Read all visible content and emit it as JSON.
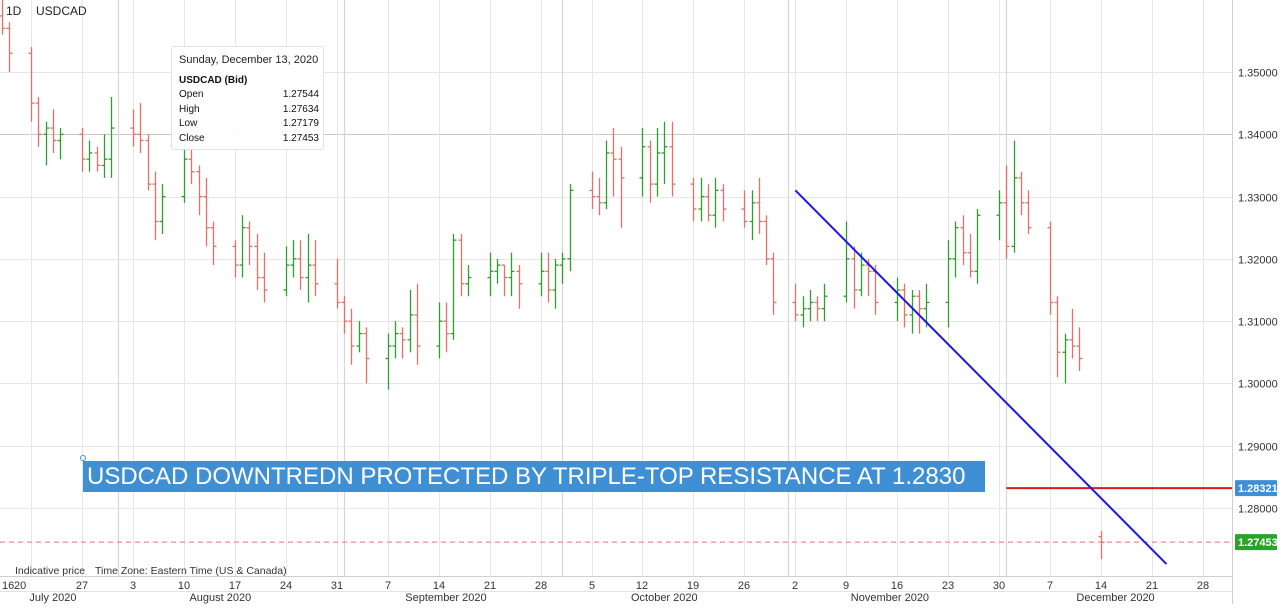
{
  "header": {
    "interval": "1D",
    "symbol": "USDCAD"
  },
  "tooltip": {
    "date": "Sunday, December 13, 2020",
    "symbol": "USDCAD (Bid)",
    "rows": [
      {
        "label": "Open",
        "value": "1.27544"
      },
      {
        "label": "High",
        "value": "1.27634"
      },
      {
        "label": "Low",
        "value": "1.27179"
      },
      {
        "label": "Close",
        "value": "1.27453"
      }
    ]
  },
  "annotation": {
    "text": "USDCAD DOWNTREDN PROTECTED BY TRIPLE-TOP RESISTANCE AT 1.2830"
  },
  "footer": {
    "indicative": "Indicative price",
    "timezone": "Time Zone: Eastern Time (US & Canada)"
  },
  "colors": {
    "up": "#2ca02c",
    "down": "#e8706a",
    "trendline": "#1a1adf",
    "resistance": "#e01818",
    "last_price_label": "#29a329",
    "resistance_label": "#3e8fd3",
    "annotation_bg": "#3e8fd3"
  },
  "chart_data": {
    "type": "ohlc",
    "title": "",
    "xlabel": "",
    "ylabel": "",
    "ylim": [
      1.262,
      1.363
    ],
    "xlim": [
      "2020-07-16",
      "2021-01-01"
    ],
    "grid": true,
    "y_ticks": [
      "1.35000",
      "1.34000",
      "1.33000",
      "1.32000",
      "1.31000",
      "1.30000",
      "1.29000",
      "1.28000"
    ],
    "x_day_ticks": [
      {
        "date": "2020-07-16",
        "label": "16"
      },
      {
        "date": "2020-07-20",
        "label": "20"
      },
      {
        "date": "2020-07-27",
        "label": "27"
      },
      {
        "date": "2020-08-03",
        "label": "3"
      },
      {
        "date": "2020-08-10",
        "label": "10"
      },
      {
        "date": "2020-08-17",
        "label": "17"
      },
      {
        "date": "2020-08-24",
        "label": "24"
      },
      {
        "date": "2020-08-31",
        "label": "31"
      },
      {
        "date": "2020-09-07",
        "label": "7"
      },
      {
        "date": "2020-09-14",
        "label": "14"
      },
      {
        "date": "2020-09-21",
        "label": "21"
      },
      {
        "date": "2020-09-28",
        "label": "28"
      },
      {
        "date": "2020-10-05",
        "label": "5"
      },
      {
        "date": "2020-10-12",
        "label": "12"
      },
      {
        "date": "2020-10-19",
        "label": "19"
      },
      {
        "date": "2020-10-26",
        "label": "26"
      },
      {
        "date": "2020-11-02",
        "label": "2"
      },
      {
        "date": "2020-11-09",
        "label": "9"
      },
      {
        "date": "2020-11-16",
        "label": "16"
      },
      {
        "date": "2020-11-23",
        "label": "23"
      },
      {
        "date": "2020-11-30",
        "label": "30"
      },
      {
        "date": "2020-12-07",
        "label": "7"
      },
      {
        "date": "2020-12-14",
        "label": "14"
      },
      {
        "date": "2020-12-21",
        "label": "21"
      },
      {
        "date": "2020-12-28",
        "label": "28"
      }
    ],
    "x_month_labels": [
      {
        "date": "2020-07-23",
        "label": "July 2020"
      },
      {
        "date": "2020-08-15",
        "label": "August 2020"
      },
      {
        "date": "2020-09-15",
        "label": "September 2020"
      },
      {
        "date": "2020-10-15",
        "label": "October 2020"
      },
      {
        "date": "2020-11-15",
        "label": "November 2020"
      },
      {
        "date": "2020-12-16",
        "label": "December 2020"
      }
    ],
    "month_dividers": [
      "2020-08-01",
      "2020-09-01",
      "2020-10-01",
      "2020-11-01",
      "2020-12-01"
    ],
    "bars": [
      {
        "date": "2020-07-16",
        "open": 1.359,
        "high": 1.362,
        "low": 1.356,
        "close": 1.357
      },
      {
        "date": "2020-07-17",
        "open": 1.357,
        "high": 1.358,
        "low": 1.35,
        "close": 1.353
      },
      {
        "date": "2020-07-20",
        "open": 1.353,
        "high": 1.354,
        "low": 1.342,
        "close": 1.345
      },
      {
        "date": "2020-07-21",
        "open": 1.345,
        "high": 1.346,
        "low": 1.338,
        "close": 1.34
      },
      {
        "date": "2020-07-22",
        "open": 1.34,
        "high": 1.342,
        "low": 1.335,
        "close": 1.341
      },
      {
        "date": "2020-07-23",
        "open": 1.341,
        "high": 1.344,
        "low": 1.337,
        "close": 1.339
      },
      {
        "date": "2020-07-24",
        "open": 1.339,
        "high": 1.341,
        "low": 1.336,
        "close": 1.34
      },
      {
        "date": "2020-07-27",
        "open": 1.34,
        "high": 1.341,
        "low": 1.334,
        "close": 1.336
      },
      {
        "date": "2020-07-28",
        "open": 1.336,
        "high": 1.339,
        "low": 1.334,
        "close": 1.337
      },
      {
        "date": "2020-07-29",
        "open": 1.337,
        "high": 1.338,
        "low": 1.334,
        "close": 1.335
      },
      {
        "date": "2020-07-30",
        "open": 1.335,
        "high": 1.34,
        "low": 1.333,
        "close": 1.336
      },
      {
        "date": "2020-07-31",
        "open": 1.336,
        "high": 1.346,
        "low": 1.333,
        "close": 1.341
      },
      {
        "date": "2020-08-03",
        "open": 1.341,
        "high": 1.344,
        "low": 1.338,
        "close": 1.34
      },
      {
        "date": "2020-08-04",
        "open": 1.34,
        "high": 1.345,
        "low": 1.337,
        "close": 1.339
      },
      {
        "date": "2020-08-05",
        "open": 1.339,
        "high": 1.34,
        "low": 1.331,
        "close": 1.332
      },
      {
        "date": "2020-08-06",
        "open": 1.332,
        "high": 1.334,
        "low": 1.323,
        "close": 1.326
      },
      {
        "date": "2020-08-07",
        "open": 1.326,
        "high": 1.332,
        "low": 1.324,
        "close": 1.33
      },
      {
        "date": "2020-08-10",
        "open": 1.33,
        "high": 1.339,
        "low": 1.329,
        "close": 1.336
      },
      {
        "date": "2020-08-11",
        "open": 1.336,
        "high": 1.338,
        "low": 1.332,
        "close": 1.334
      },
      {
        "date": "2020-08-12",
        "open": 1.334,
        "high": 1.335,
        "low": 1.327,
        "close": 1.33
      },
      {
        "date": "2020-08-13",
        "open": 1.33,
        "high": 1.333,
        "low": 1.322,
        "close": 1.325
      },
      {
        "date": "2020-08-14",
        "open": 1.325,
        "high": 1.326,
        "low": 1.319,
        "close": 1.322
      },
      {
        "date": "2020-08-17",
        "open": 1.322,
        "high": 1.323,
        "low": 1.317,
        "close": 1.319
      },
      {
        "date": "2020-08-18",
        "open": 1.319,
        "high": 1.327,
        "low": 1.317,
        "close": 1.325
      },
      {
        "date": "2020-08-19",
        "open": 1.325,
        "high": 1.326,
        "low": 1.319,
        "close": 1.322
      },
      {
        "date": "2020-08-20",
        "open": 1.322,
        "high": 1.324,
        "low": 1.315,
        "close": 1.317
      },
      {
        "date": "2020-08-21",
        "open": 1.317,
        "high": 1.321,
        "low": 1.313,
        "close": 1.315
      },
      {
        "date": "2020-08-24",
        "open": 1.315,
        "high": 1.322,
        "low": 1.314,
        "close": 1.319
      },
      {
        "date": "2020-08-25",
        "open": 1.319,
        "high": 1.323,
        "low": 1.317,
        "close": 1.32
      },
      {
        "date": "2020-08-26",
        "open": 1.32,
        "high": 1.323,
        "low": 1.315,
        "close": 1.317
      },
      {
        "date": "2020-08-27",
        "open": 1.317,
        "high": 1.324,
        "low": 1.313,
        "close": 1.319
      },
      {
        "date": "2020-08-28",
        "open": 1.319,
        "high": 1.323,
        "low": 1.314,
        "close": 1.316
      },
      {
        "date": "2020-08-31",
        "open": 1.316,
        "high": 1.32,
        "low": 1.312,
        "close": 1.313
      },
      {
        "date": "2020-09-01",
        "open": 1.313,
        "high": 1.314,
        "low": 1.308,
        "close": 1.31
      },
      {
        "date": "2020-09-02",
        "open": 1.31,
        "high": 1.312,
        "low": 1.303,
        "close": 1.306
      },
      {
        "date": "2020-09-03",
        "open": 1.306,
        "high": 1.31,
        "low": 1.305,
        "close": 1.308
      },
      {
        "date": "2020-09-04",
        "open": 1.308,
        "high": 1.309,
        "low": 1.3,
        "close": 1.304
      },
      {
        "date": "2020-09-07",
        "open": 1.304,
        "high": 1.308,
        "low": 1.299,
        "close": 1.306
      },
      {
        "date": "2020-09-08",
        "open": 1.306,
        "high": 1.31,
        "low": 1.304,
        "close": 1.308
      },
      {
        "date": "2020-09-09",
        "open": 1.308,
        "high": 1.309,
        "low": 1.304,
        "close": 1.307
      },
      {
        "date": "2020-09-10",
        "open": 1.307,
        "high": 1.315,
        "low": 1.305,
        "close": 1.311
      },
      {
        "date": "2020-09-11",
        "open": 1.311,
        "high": 1.316,
        "low": 1.303,
        "close": 1.306
      },
      {
        "date": "2020-09-14",
        "open": 1.306,
        "high": 1.313,
        "low": 1.304,
        "close": 1.31
      },
      {
        "date": "2020-09-15",
        "open": 1.31,
        "high": 1.313,
        "low": 1.305,
        "close": 1.308
      },
      {
        "date": "2020-09-16",
        "open": 1.308,
        "high": 1.324,
        "low": 1.307,
        "close": 1.323
      },
      {
        "date": "2020-09-17",
        "open": 1.323,
        "high": 1.324,
        "low": 1.314,
        "close": 1.316
      },
      {
        "date": "2020-09-18",
        "open": 1.316,
        "high": 1.319,
        "low": 1.314,
        "close": 1.317
      },
      {
        "date": "2020-09-21",
        "open": 1.317,
        "high": 1.321,
        "low": 1.314,
        "close": 1.318
      },
      {
        "date": "2020-09-22",
        "open": 1.318,
        "high": 1.32,
        "low": 1.316,
        "close": 1.319
      },
      {
        "date": "2020-09-23",
        "open": 1.319,
        "high": 1.319,
        "low": 1.314,
        "close": 1.317
      },
      {
        "date": "2020-09-24",
        "open": 1.317,
        "high": 1.321,
        "low": 1.314,
        "close": 1.318
      },
      {
        "date": "2020-09-25",
        "open": 1.318,
        "high": 1.319,
        "low": 1.312,
        "close": 1.316
      },
      {
        "date": "2020-09-28",
        "open": 1.316,
        "high": 1.321,
        "low": 1.314,
        "close": 1.318
      },
      {
        "date": "2020-09-29",
        "open": 1.318,
        "high": 1.321,
        "low": 1.313,
        "close": 1.315
      },
      {
        "date": "2020-09-30",
        "open": 1.315,
        "high": 1.32,
        "low": 1.312,
        "close": 1.319
      },
      {
        "date": "2020-10-01",
        "open": 1.319,
        "high": 1.321,
        "low": 1.316,
        "close": 1.32
      },
      {
        "date": "2020-10-02",
        "open": 1.32,
        "high": 1.332,
        "low": 1.318,
        "close": 1.331
      },
      {
        "date": "2020-10-05",
        "open": 1.331,
        "high": 1.334,
        "low": 1.328,
        "close": 1.33
      },
      {
        "date": "2020-10-06",
        "open": 1.33,
        "high": 1.333,
        "low": 1.327,
        "close": 1.329
      },
      {
        "date": "2020-10-07",
        "open": 1.329,
        "high": 1.339,
        "low": 1.328,
        "close": 1.337
      },
      {
        "date": "2020-10-08",
        "open": 1.337,
        "high": 1.341,
        "low": 1.33,
        "close": 1.336
      },
      {
        "date": "2020-10-09",
        "open": 1.336,
        "high": 1.338,
        "low": 1.325,
        "close": 1.333
      },
      {
        "date": "2020-10-12",
        "open": 1.333,
        "high": 1.341,
        "low": 1.33,
        "close": 1.338
      },
      {
        "date": "2020-10-13",
        "open": 1.338,
        "high": 1.339,
        "low": 1.329,
        "close": 1.332
      },
      {
        "date": "2020-10-14",
        "open": 1.332,
        "high": 1.341,
        "low": 1.33,
        "close": 1.337
      },
      {
        "date": "2020-10-15",
        "open": 1.337,
        "high": 1.342,
        "low": 1.332,
        "close": 1.338
      },
      {
        "date": "2020-10-16",
        "open": 1.338,
        "high": 1.342,
        "low": 1.33,
        "close": 1.332
      },
      {
        "date": "2020-10-19",
        "open": 1.332,
        "high": 1.333,
        "low": 1.326,
        "close": 1.328
      },
      {
        "date": "2020-10-20",
        "open": 1.328,
        "high": 1.333,
        "low": 1.326,
        "close": 1.33
      },
      {
        "date": "2020-10-21",
        "open": 1.33,
        "high": 1.332,
        "low": 1.326,
        "close": 1.327
      },
      {
        "date": "2020-10-22",
        "open": 1.327,
        "high": 1.333,
        "low": 1.325,
        "close": 1.331
      },
      {
        "date": "2020-10-23",
        "open": 1.331,
        "high": 1.332,
        "low": 1.326,
        "close": 1.328
      },
      {
        "date": "2020-10-26",
        "open": 1.328,
        "high": 1.331,
        "low": 1.325,
        "close": 1.326
      },
      {
        "date": "2020-10-27",
        "open": 1.326,
        "high": 1.331,
        "low": 1.323,
        "close": 1.329
      },
      {
        "date": "2020-10-28",
        "open": 1.329,
        "high": 1.333,
        "low": 1.324,
        "close": 1.326
      },
      {
        "date": "2020-10-29",
        "open": 1.326,
        "high": 1.327,
        "low": 1.319,
        "close": 1.32
      },
      {
        "date": "2020-10-30",
        "open": 1.32,
        "high": 1.321,
        "low": 1.311,
        "close": 1.313
      },
      {
        "date": "2020-11-02",
        "open": 1.313,
        "high": 1.316,
        "low": 1.31,
        "close": 1.311
      },
      {
        "date": "2020-11-03",
        "open": 1.311,
        "high": 1.314,
        "low": 1.309,
        "close": 1.312
      },
      {
        "date": "2020-11-04",
        "open": 1.312,
        "high": 1.315,
        "low": 1.31,
        "close": 1.313
      },
      {
        "date": "2020-11-05",
        "open": 1.313,
        "high": 1.314,
        "low": 1.31,
        "close": 1.312
      },
      {
        "date": "2020-11-06",
        "open": 1.312,
        "high": 1.316,
        "low": 1.31,
        "close": 1.314
      },
      {
        "date": "2020-11-09",
        "open": 1.314,
        "high": 1.326,
        "low": 1.313,
        "close": 1.32
      },
      {
        "date": "2020-11-10",
        "open": 1.32,
        "high": 1.322,
        "low": 1.312,
        "close": 1.315
      },
      {
        "date": "2020-11-11",
        "open": 1.315,
        "high": 1.321,
        "low": 1.314,
        "close": 1.319
      },
      {
        "date": "2020-11-12",
        "open": 1.319,
        "high": 1.32,
        "low": 1.314,
        "close": 1.318
      },
      {
        "date": "2020-11-13",
        "open": 1.318,
        "high": 1.319,
        "low": 1.311,
        "close": 1.313
      },
      {
        "date": "2020-11-16",
        "open": 1.313,
        "high": 1.317,
        "low": 1.31,
        "close": 1.315
      },
      {
        "date": "2020-11-17",
        "open": 1.315,
        "high": 1.316,
        "low": 1.309,
        "close": 1.311
      },
      {
        "date": "2020-11-18",
        "open": 1.311,
        "high": 1.315,
        "low": 1.308,
        "close": 1.314
      },
      {
        "date": "2020-11-19",
        "open": 1.314,
        "high": 1.315,
        "low": 1.308,
        "close": 1.312
      },
      {
        "date": "2020-11-20",
        "open": 1.312,
        "high": 1.316,
        "low": 1.309,
        "close": 1.313
      },
      {
        "date": "2020-11-23",
        "open": 1.313,
        "high": 1.323,
        "low": 1.309,
        "close": 1.32
      },
      {
        "date": "2020-11-24",
        "open": 1.32,
        "high": 1.326,
        "low": 1.317,
        "close": 1.325
      },
      {
        "date": "2020-11-25",
        "open": 1.325,
        "high": 1.327,
        "low": 1.319,
        "close": 1.321
      },
      {
        "date": "2020-11-26",
        "open": 1.321,
        "high": 1.324,
        "low": 1.317,
        "close": 1.318
      },
      {
        "date": "2020-11-27",
        "open": 1.318,
        "high": 1.328,
        "low": 1.316,
        "close": 1.327
      },
      {
        "date": "2020-11-30",
        "open": 1.327,
        "high": 1.331,
        "low": 1.323,
        "close": 1.329
      },
      {
        "date": "2020-12-01",
        "open": 1.329,
        "high": 1.335,
        "low": 1.32,
        "close": 1.322
      },
      {
        "date": "2020-12-02",
        "open": 1.322,
        "high": 1.339,
        "low": 1.321,
        "close": 1.333
      },
      {
        "date": "2020-12-03",
        "open": 1.333,
        "high": 1.334,
        "low": 1.327,
        "close": 1.329
      },
      {
        "date": "2020-12-04",
        "open": 1.329,
        "high": 1.331,
        "low": 1.324,
        "close": 1.325
      },
      {
        "date": "2020-12-07",
        "open": 1.325,
        "high": 1.326,
        "low": 1.311,
        "close": 1.313
      },
      {
        "date": "2020-12-08",
        "open": 1.313,
        "high": 1.314,
        "low": 1.301,
        "close": 1.305
      },
      {
        "date": "2020-12-09",
        "open": 1.305,
        "high": 1.308,
        "low": 1.3,
        "close": 1.307
      },
      {
        "date": "2020-12-10",
        "open": 1.307,
        "high": 1.312,
        "low": 1.304,
        "close": 1.306
      },
      {
        "date": "2020-12-11",
        "open": 1.306,
        "high": 1.309,
        "low": 1.302,
        "close": 1.304
      },
      {
        "date": "2020-12-14",
        "open": 1.2754,
        "high": 1.2763,
        "low": 1.2718,
        "close": 1.2745
      }
    ],
    "trendline": {
      "start": {
        "date": "2020-11-02",
        "price": 1.331
      },
      "end": {
        "date": "2020-12-23",
        "price": 1.271
      }
    },
    "resistance_line": {
      "start_date": "2020-12-01",
      "price": 1.2832,
      "label": "1.28321"
    },
    "last_price": {
      "price": 1.27453,
      "label": "1.27453"
    },
    "top_reference_line": {
      "price": 1.3401
    }
  }
}
